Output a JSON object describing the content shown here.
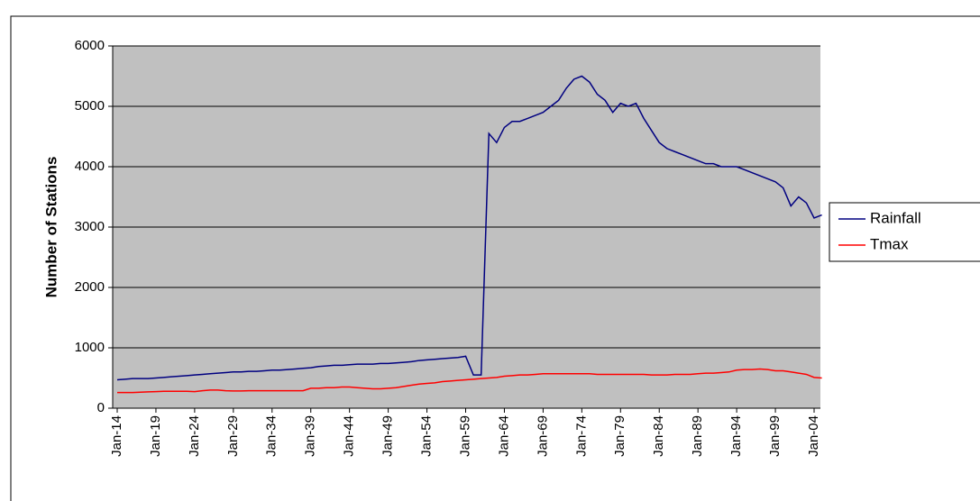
{
  "chart_data": {
    "type": "line",
    "y_label": "Number of Stations",
    "categories": [
      "Jan-14",
      null,
      null,
      null,
      null,
      "Jan-19",
      null,
      null,
      null,
      null,
      "Jan-24",
      null,
      null,
      null,
      null,
      "Jan-29",
      null,
      null,
      null,
      null,
      "Jan-34",
      null,
      null,
      null,
      null,
      "Jan-39",
      null,
      null,
      null,
      null,
      "Jan-44",
      null,
      null,
      null,
      null,
      "Jan-49",
      null,
      null,
      null,
      null,
      "Jan-54",
      null,
      null,
      null,
      null,
      "Jan-59",
      null,
      null,
      null,
      null,
      "Jan-64",
      null,
      null,
      null,
      null,
      "Jan-69",
      null,
      null,
      null,
      null,
      "Jan-74",
      null,
      null,
      null,
      null,
      "Jan-79",
      null,
      null,
      null,
      null,
      "Jan-84",
      null,
      null,
      null,
      null,
      "Jan-89",
      null,
      null,
      null,
      null,
      "Jan-94",
      null,
      null,
      null,
      null,
      "Jan-99",
      null,
      null,
      null,
      null,
      "Jan-04",
      null
    ],
    "series": [
      {
        "name": "Rainfall",
        "color": "#000080",
        "values": [
          470,
          480,
          490,
          490,
          490,
          500,
          510,
          520,
          530,
          540,
          550,
          560,
          570,
          580,
          590,
          600,
          600,
          610,
          610,
          620,
          630,
          630,
          640,
          650,
          660,
          670,
          690,
          700,
          710,
          710,
          720,
          730,
          730,
          730,
          740,
          740,
          750,
          760,
          770,
          790,
          800,
          810,
          820,
          830,
          840,
          860,
          550,
          550,
          4550,
          4400,
          4650,
          4750,
          4750,
          4800,
          4850,
          4900,
          5000,
          5100,
          5300,
          5450,
          5500,
          5400,
          5200,
          5100,
          4900,
          5050,
          5000,
          5050,
          4800,
          4600,
          4400,
          4300,
          4250,
          4200,
          4150,
          4100,
          4050,
          4050,
          4000,
          4000,
          4000,
          3950,
          3900,
          3850,
          3800,
          3750,
          3650,
          3350,
          3500,
          3400,
          3150,
          3200
        ]
      },
      {
        "name": "Tmax",
        "color": "#ff0000",
        "values": [
          260,
          260,
          260,
          265,
          270,
          275,
          280,
          280,
          280,
          280,
          275,
          290,
          300,
          300,
          290,
          285,
          285,
          290,
          290,
          290,
          290,
          290,
          290,
          290,
          290,
          330,
          330,
          340,
          340,
          350,
          350,
          340,
          330,
          320,
          320,
          330,
          340,
          360,
          380,
          400,
          410,
          420,
          440,
          450,
          460,
          470,
          480,
          490,
          500,
          510,
          530,
          540,
          550,
          550,
          560,
          570,
          570,
          570,
          570,
          570,
          570,
          570,
          560,
          560,
          560,
          560,
          560,
          560,
          560,
          550,
          550,
          550,
          560,
          560,
          560,
          570,
          580,
          580,
          590,
          600,
          630,
          640,
          640,
          650,
          640,
          620,
          620,
          600,
          580,
          560,
          510,
          500
        ]
      }
    ],
    "ylim": [
      0,
      6000
    ],
    "yticks": [
      0,
      1000,
      2000,
      3000,
      4000,
      5000,
      6000
    ],
    "grid": true,
    "plot_background": "#c0c0c0",
    "legend": "right"
  }
}
